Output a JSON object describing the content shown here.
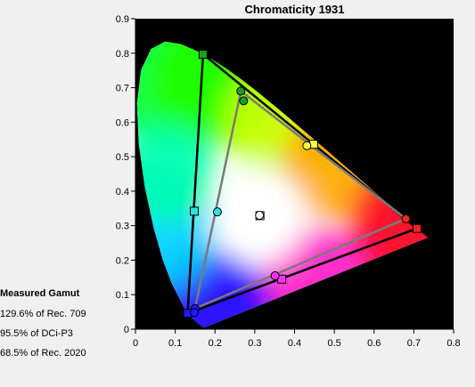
{
  "chart_data": {
    "type": "scatter",
    "title": "Chromaticity 1931",
    "xlim": [
      0,
      0.8
    ],
    "ylim": [
      0,
      0.9
    ],
    "x_ticks": [
      "0",
      "0.1",
      "0.2",
      "0.3",
      "0.4",
      "0.5",
      "0.6",
      "0.7",
      "0.8"
    ],
    "y_ticks": [
      "0",
      "0.1",
      "0.2",
      "0.3",
      "0.4",
      "0.5",
      "0.6",
      "0.7",
      "0.8",
      "0.9"
    ],
    "background": "#000000",
    "gamut_triangles": [
      {
        "stroke": "#000000",
        "points": [
          [
            0.17,
            0.797
          ],
          [
            0.708,
            0.292
          ],
          [
            0.131,
            0.046
          ]
        ]
      },
      {
        "stroke": "#7a7a7a",
        "points": [
          [
            0.265,
            0.69
          ],
          [
            0.68,
            0.32
          ],
          [
            0.15,
            0.06
          ]
        ]
      }
    ],
    "markers": [
      {
        "shape": "square",
        "color": "#1aa01a",
        "x": 0.17,
        "y": 0.797
      },
      {
        "shape": "square",
        "color": "#ff2020",
        "x": 0.708,
        "y": 0.292
      },
      {
        "shape": "square",
        "color": "#1a1aff",
        "x": 0.131,
        "y": 0.046
      },
      {
        "shape": "square",
        "color": "#ffff40",
        "x": 0.448,
        "y": 0.536
      },
      {
        "shape": "square",
        "color": "#30e0e0",
        "x": 0.148,
        "y": 0.342
      },
      {
        "shape": "square",
        "color": "#ff30ff",
        "x": 0.368,
        "y": 0.145
      },
      {
        "shape": "square",
        "color": "#ffffff",
        "x": 0.313,
        "y": 0.329
      },
      {
        "shape": "circle",
        "color": "#1aa01a",
        "x": 0.265,
        "y": 0.69
      },
      {
        "shape": "circle",
        "color": "#1aa01a",
        "x": 0.272,
        "y": 0.662
      },
      {
        "shape": "circle",
        "color": "#ff2020",
        "x": 0.68,
        "y": 0.32
      },
      {
        "shape": "circle",
        "color": "#1a1aff",
        "x": 0.15,
        "y": 0.06
      },
      {
        "shape": "circle",
        "color": "#1a1aff",
        "x": 0.148,
        "y": 0.048
      },
      {
        "shape": "circle",
        "color": "#ffff40",
        "x": 0.431,
        "y": 0.532
      },
      {
        "shape": "circle",
        "color": "#30e0e0",
        "x": 0.206,
        "y": 0.34
      },
      {
        "shape": "circle",
        "color": "#ff30ff",
        "x": 0.351,
        "y": 0.155
      },
      {
        "shape": "circle",
        "color": "#ffffff",
        "x": 0.312,
        "y": 0.33
      }
    ]
  },
  "measured_gamut": {
    "title": "Measured Gamut",
    "lines": [
      "129.6% of Rec. 709",
      "95.5% of DCi-P3",
      "68.5% of Rec. 2020"
    ]
  }
}
